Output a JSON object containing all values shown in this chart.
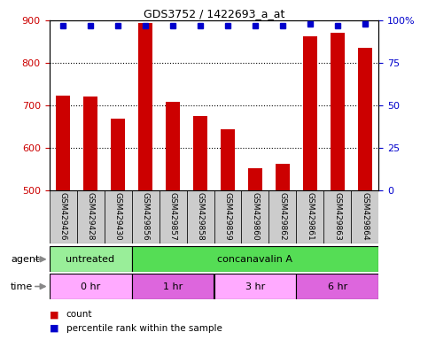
{
  "title": "GDS3752 / 1422693_a_at",
  "samples": [
    "GSM429426",
    "GSM429428",
    "GSM429430",
    "GSM429856",
    "GSM429857",
    "GSM429858",
    "GSM429859",
    "GSM429860",
    "GSM429862",
    "GSM429861",
    "GSM429863",
    "GSM429864"
  ],
  "counts": [
    722,
    720,
    668,
    893,
    708,
    675,
    643,
    553,
    563,
    863,
    871,
    836
  ],
  "percentile_ranks": [
    97,
    97,
    97,
    97,
    97,
    97,
    97,
    97,
    97,
    98,
    97,
    98
  ],
  "ymin": 500,
  "ymax": 900,
  "yticks_left": [
    500,
    600,
    700,
    800,
    900
  ],
  "yticks_right": [
    0,
    25,
    50,
    75,
    100
  ],
  "bar_color": "#cc0000",
  "dot_color": "#0000cc",
  "bar_width": 0.5,
  "agent_row": [
    {
      "label": "untreated",
      "start": 0,
      "end": 3,
      "color": "#99ee99"
    },
    {
      "label": "concanavalin A",
      "start": 3,
      "end": 12,
      "color": "#55dd55"
    }
  ],
  "time_row": [
    {
      "label": "0 hr",
      "start": 0,
      "end": 3,
      "color": "#ffaaff"
    },
    {
      "label": "1 hr",
      "start": 3,
      "end": 6,
      "color": "#dd66dd"
    },
    {
      "label": "3 hr",
      "start": 6,
      "end": 9,
      "color": "#ffaaff"
    },
    {
      "label": "6 hr",
      "start": 9,
      "end": 12,
      "color": "#dd66dd"
    }
  ],
  "legend_count_color": "#cc0000",
  "legend_dot_color": "#0000cc",
  "bg_color": "#ffffff",
  "tick_label_color_left": "#cc0000",
  "tick_label_color_right": "#0000cc",
  "cell_color": "#cccccc"
}
